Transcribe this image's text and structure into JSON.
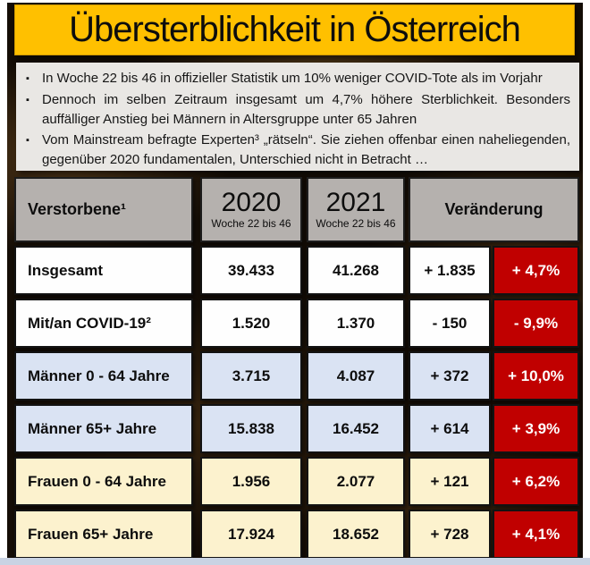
{
  "title": "Übersterblichkeit in Österreich",
  "icons": {
    "bullet": "▪"
  },
  "bullets": [
    "In Woche 22 bis 46 in offizieller Statistik um 10% weniger COVID-Tote als im Vorjahr",
    "Dennoch im selben Zeitraum insgesamt um 4,7% höhere Sterblichkeit. Besonders auffälliger Anstieg bei Männern in Altersgruppe unter 65 Jahren",
    "Vom Mainstream befragte Experten³ „rätseln“. Sie ziehen offenbar einen naheliegenden, gegenüber 2020 fundamentalen, Unterschied nicht in Betracht …"
  ],
  "table": {
    "header": {
      "label": "Verstorbene¹",
      "y2020": {
        "year": "2020",
        "sub": "Woche 22 bis 46"
      },
      "y2021": {
        "year": "2021",
        "sub": "Woche 22 bis 46"
      },
      "change": "Veränderung"
    },
    "rows": [
      {
        "label": "Insgesamt",
        "v2020": "39.433",
        "v2021": "41.268",
        "diff": "+ 1.835",
        "pct": "+ 4,7%"
      },
      {
        "label": "Mit/an COVID-19²",
        "v2020": "1.520",
        "v2021": "1.370",
        "diff": "- 150",
        "pct": "- 9,9%"
      },
      {
        "label": "Männer 0 - 64 Jahre",
        "v2020": "3.715",
        "v2021": "4.087",
        "diff": "+ 372",
        "pct": "+ 10,0%"
      },
      {
        "label": "Männer 65+ Jahre",
        "v2020": "15.838",
        "v2021": "16.452",
        "diff": "+ 614",
        "pct": "+ 3,9%"
      },
      {
        "label": "Frauen 0 - 64 Jahre",
        "v2020": "1.956",
        "v2021": "2.077",
        "diff": "+ 121",
        "pct": "+ 6,2%"
      },
      {
        "label": "Frauen 65+ Jahre",
        "v2020": "17.924",
        "v2021": "18.652",
        "diff": "+ 728",
        "pct": "+ 4,1%"
      }
    ]
  },
  "colors": {
    "title_bg": "#FFC000",
    "red": "#C00000",
    "blue_row": "#DAE3F3",
    "cream_row": "#FCF2CE",
    "header_gray": "#B5B1AE",
    "panel_bg": "#E9E7E4",
    "frame_bottom": "#C9D3E3"
  }
}
